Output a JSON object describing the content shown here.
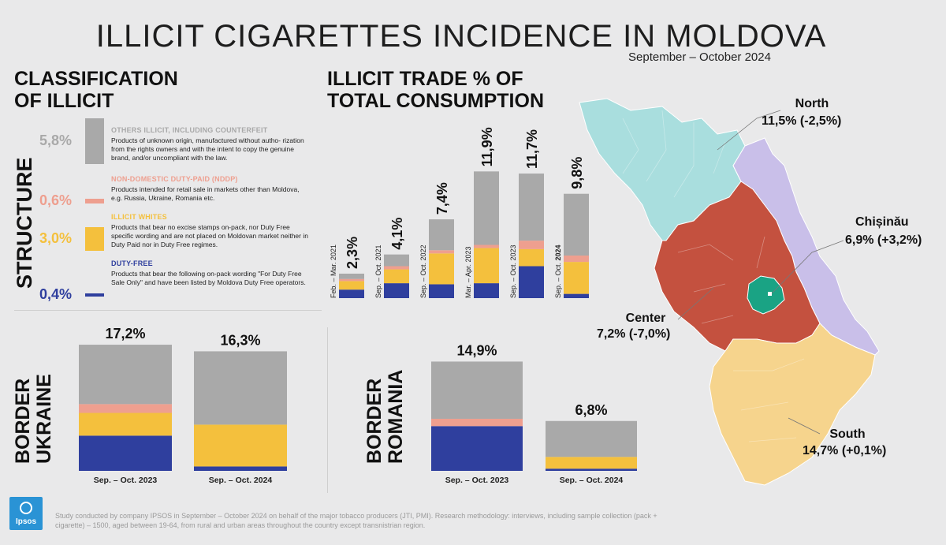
{
  "title": "ILLICIT CIGARETTES INCIDENCE IN MOLDOVA",
  "subtitle": "September – October 2024",
  "colors": {
    "others": "#a9a9a9",
    "ndp": "#ee9f8f",
    "whites": "#f4c03d",
    "duty_free": "#2f3f9e",
    "north": "#a9dede",
    "center": "#c4513f",
    "chisinau": "#1aa384",
    "south": "#f6d48d",
    "east": "#c9bfe9"
  },
  "classification": {
    "heading_line1": "CLASSIFICATION",
    "heading_line2": "OF ILLICIT",
    "structure_label": "STRUCTURE",
    "items": [
      {
        "pct": "5,8%",
        "value": 5.8,
        "title": "OTHERS ILLICIT, INCLUDING COUNTERFEIT",
        "desc": "Products of unknown origin, manufactured without autho- rization from the rights owners and with the intent to copy the genuine brand, and/or uncompliant with the law."
      },
      {
        "pct": "0,6%",
        "value": 0.6,
        "title": "NON-DOMESTIC DUTY-PAID (NDDP)",
        "desc": "Products intended for retail sale in markets other than Moldova, e.g. Russia, Ukraine, Romania etc."
      },
      {
        "pct": "3,0%",
        "value": 3.0,
        "title": "ILLICIT WHITES",
        "desc": "Products that bear no excise stamps on-pack, nor Duty Free specific wording and are not placed on Moldovan market neither in Duty Paid nor in Duty Free regimes."
      },
      {
        "pct": "0,4%",
        "value": 0.4,
        "title": "DUTY-FREE",
        "desc": "Products that bear the following on-pack wording \"For Duty Free Sale Only\" and have been listed by Moldova Duty Free operators."
      }
    ]
  },
  "chart_data": [
    {
      "type": "bar",
      "title": "ILLICIT TRADE % OF TOTAL CONSUMPTION",
      "categories": [
        "Feb. – Mar. 2021",
        "Sep. – Oct. 2021",
        "Sep. – Oct. 2022",
        "Mar. – Apr. 2023",
        "Sep. – Oct. 2023",
        "Sep. – Oct. 2024"
      ],
      "totals": [
        2.3,
        4.1,
        7.4,
        11.9,
        11.7,
        9.8
      ],
      "labels": [
        "2,3%",
        "4,1%",
        "7,4%",
        "11,9%",
        "11,7%",
        "9,8%"
      ],
      "series": [
        {
          "name": "DUTY-FREE",
          "values": [
            0.8,
            1.4,
            1.3,
            1.4,
            3.0,
            0.4
          ]
        },
        {
          "name": "ILLICIT WHITES",
          "values": [
            0.8,
            1.3,
            2.9,
            3.3,
            1.6,
            3.0
          ]
        },
        {
          "name": "NON-DOMESTIC DUTY-PAID (NDDP)",
          "values": [
            0.2,
            0.3,
            0.3,
            0.3,
            0.8,
            0.6
          ]
        },
        {
          "name": "OTHERS ILLICIT, INCLUDING COUNTERFEIT",
          "values": [
            0.5,
            1.1,
            2.9,
            6.9,
            6.3,
            5.8
          ]
        }
      ]
    },
    {
      "type": "bar",
      "title": "BORDER UKRAINE",
      "categories": [
        "Sep. – Oct. 2023",
        "Sep. – Oct. 2024"
      ],
      "totals": [
        17.2,
        16.3
      ],
      "labels": [
        "17,2%",
        "16,3%"
      ],
      "series": [
        {
          "name": "DUTY-FREE",
          "values": [
            4.8,
            0.6
          ]
        },
        {
          "name": "ILLICIT WHITES",
          "values": [
            3.1,
            5.7
          ]
        },
        {
          "name": "NON-DOMESTIC DUTY-PAID (NDDP)",
          "values": [
            1.2,
            0.0
          ]
        },
        {
          "name": "OTHERS ILLICIT, INCLUDING COUNTERFEIT",
          "values": [
            8.1,
            10.0
          ]
        }
      ]
    },
    {
      "type": "bar",
      "title": "BORDER ROMANIA",
      "categories": [
        "Sep. – Oct. 2023",
        "Sep. – Oct. 2024"
      ],
      "totals": [
        14.9,
        6.8
      ],
      "labels": [
        "14,9%",
        "6,8%"
      ],
      "series": [
        {
          "name": "DUTY-FREE",
          "values": [
            6.1,
            0.3
          ]
        },
        {
          "name": "ILLICIT WHITES",
          "values": [
            0.0,
            1.6
          ]
        },
        {
          "name": "NON-DOMESTIC DUTY-PAID (NDDP)",
          "values": [
            1.0,
            0.0
          ]
        },
        {
          "name": "OTHERS ILLICIT, INCLUDING COUNTERFEIT",
          "values": [
            7.8,
            4.9
          ]
        }
      ]
    }
  ],
  "trend": {
    "heading_line1": "ILLICIT TRADE % OF",
    "heading_line2": "TOTAL CONSUMPTION",
    "bold_year_index": 5,
    "cat_prefix": "Sep. – Oct. ",
    "cat_year": "2024"
  },
  "border_ukraine": {
    "label_line1": "BORDER",
    "label_line2": "UKRAINE",
    "cap1": "Sep. – Oct. 2023",
    "cap2_prefix": "Sep. – Oct. ",
    "cap2_year": "2024"
  },
  "border_romania": {
    "label_line1": "BORDER",
    "label_line2": "ROMANIA",
    "cap1": "Sep. – Oct. 2023",
    "cap2_prefix": "Sep. – Oct. ",
    "cap2_year": "2024"
  },
  "regions": {
    "north": {
      "name": "North",
      "value": "11,5% (-2,5%)"
    },
    "chisinau": {
      "name": "Chișinău",
      "value": "6,9% (+3,2%)"
    },
    "center": {
      "name": "Center",
      "value": "7,2% (-7,0%)"
    },
    "south": {
      "name": "South",
      "value": "14,7% (+0,1%)"
    }
  },
  "logo": "Ipsos",
  "footnote": "Study conducted by company IPSOS in September – October 2024 on behalf of the major tobacco producers (JTI, PMI). Research methodology: interviews, including sample collection (pack + cigarette) – 1500, aged between 19-64, from rural and urban areas throughout the country except transnistrian region."
}
